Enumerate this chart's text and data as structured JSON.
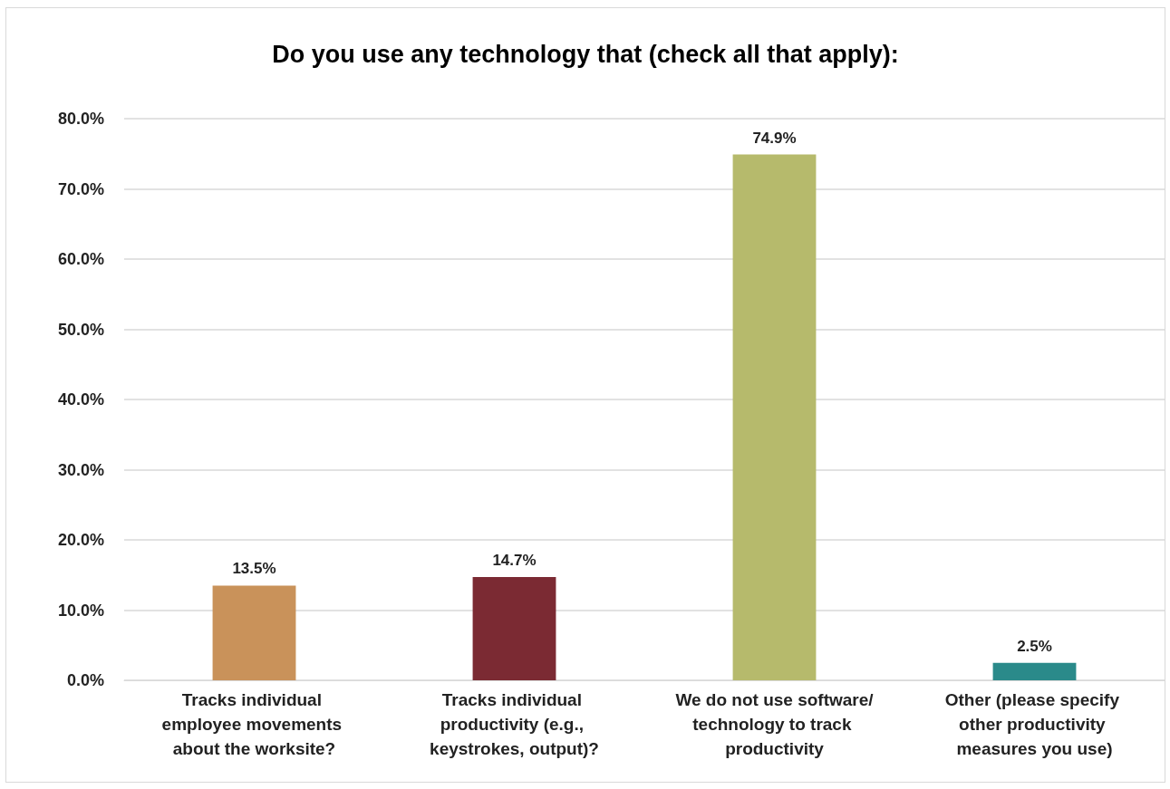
{
  "chart_data": {
    "type": "bar",
    "title": "Do you use any technology that (check all that apply):",
    "categories": [
      "Tracks individual employee movements about the worksite?",
      "Tracks individual productivity (e.g., keystrokes, output)?",
      "We do not use software/technology to track productivity",
      "Other (please specify other productivity measures you use)"
    ],
    "values": [
      13.5,
      14.7,
      74.9,
      2.5
    ],
    "colors": [
      "#c9925a",
      "#7b2a33",
      "#b6ba6c",
      "#2a8a8a"
    ],
    "value_labels": [
      "13.5%",
      "14.7%",
      "74.9%",
      "2.5%"
    ],
    "ylim": [
      0,
      80
    ],
    "yticks": [
      {
        "value": 0,
        "label": "0.0%"
      },
      {
        "value": 10,
        "label": "10.0%"
      },
      {
        "value": 20,
        "label": "20.0%"
      },
      {
        "value": 30,
        "label": "30.0%"
      },
      {
        "value": 40,
        "label": "40.0%"
      },
      {
        "value": 50,
        "label": "50.0%"
      },
      {
        "value": 60,
        "label": "60.0%"
      },
      {
        "value": 70,
        "label": "70.0%"
      },
      {
        "value": 80,
        "label": "80.0%"
      }
    ],
    "grid": "y"
  }
}
